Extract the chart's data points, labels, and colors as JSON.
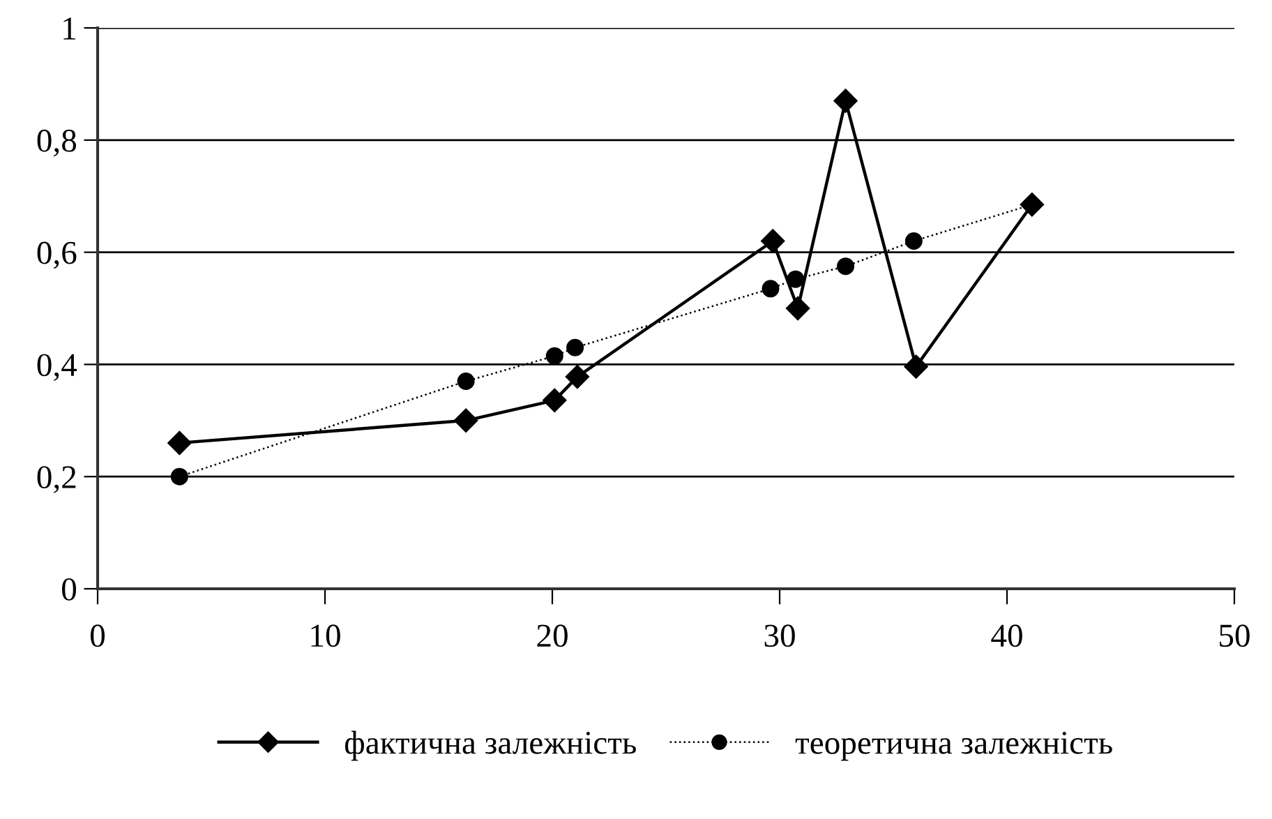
{
  "chart_data": {
    "type": "line",
    "xlim": [
      0,
      50
    ],
    "xticks": [
      0,
      10,
      20,
      30,
      40,
      50
    ],
    "ylim": [
      0,
      1
    ],
    "yticks": [
      0,
      {
        "value": 0.2,
        "label": "0,2"
      },
      {
        "value": 0.4,
        "label": "0,4"
      },
      {
        "value": 0.6,
        "label": "0,6"
      },
      {
        "value": 0.8,
        "label": "0,8"
      },
      1
    ],
    "grid": "y",
    "legend": "bottom",
    "series": [
      {
        "name": "фактична залежність",
        "color": "#000000",
        "marker": "diamond",
        "line_style": "solid",
        "x": [
          3.6,
          16.2,
          20.1,
          21.1,
          29.7,
          30.8,
          32.9,
          36.0,
          41.1
        ],
        "values": [
          0.26,
          0.3,
          0.336,
          0.378,
          0.62,
          0.5,
          0.87,
          0.396,
          0.685
        ]
      },
      {
        "name": "теоретична залежність",
        "color": "#000000",
        "marker": "circle",
        "line_style": "dotted",
        "x": [
          3.6,
          16.2,
          20.1,
          21.0,
          29.6,
          30.7,
          32.9,
          35.9,
          41.1
        ],
        "values": [
          0.2,
          0.37,
          0.415,
          0.43,
          0.535,
          0.552,
          0.575,
          0.62,
          0.685
        ]
      }
    ]
  }
}
